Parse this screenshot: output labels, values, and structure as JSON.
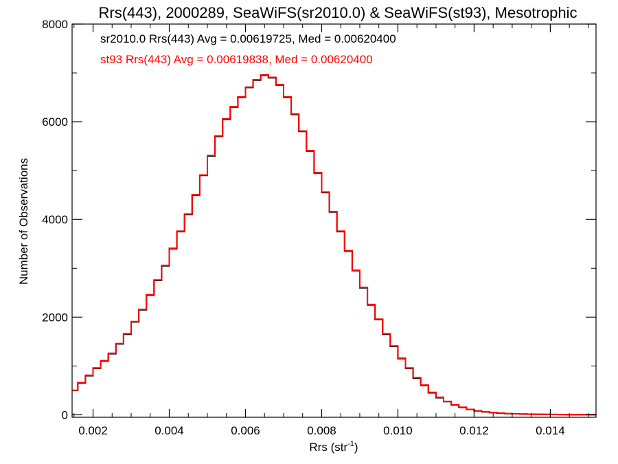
{
  "colors": {
    "series_1": "#000000",
    "series_2": "#ff0000",
    "axis": "#000000",
    "background": "#ffffff"
  },
  "chart_data": {
    "type": "line",
    "title": "Rrs(443), 2000289, SeaWiFS(sr2010.0) & SeaWiFS(st93), Mesotrophic",
    "xlabel": "Rrs (str",
    "xlabel_sup": "-1",
    "xlabel_close": ")",
    "ylabel": "Number of Observations",
    "xlim": [
      0.00145,
      0.0152
    ],
    "ylim": [
      -50,
      8000
    ],
    "x_ticks": [
      {
        "value": 0.002,
        "label": "0.002"
      },
      {
        "value": 0.004,
        "label": "0.004"
      },
      {
        "value": 0.006,
        "label": "0.006"
      },
      {
        "value": 0.008,
        "label": "0.008"
      },
      {
        "value": 0.01,
        "label": "0.010"
      },
      {
        "value": 0.012,
        "label": "0.012"
      },
      {
        "value": 0.014,
        "label": "0.014"
      }
    ],
    "y_ticks": [
      {
        "value": 0,
        "label": "0"
      },
      {
        "value": 2000,
        "label": "2000"
      },
      {
        "value": 4000,
        "label": "4000"
      },
      {
        "value": 6000,
        "label": "6000"
      },
      {
        "value": 8000,
        "label": "8000"
      }
    ],
    "grid": false,
    "legend_position": "top-left",
    "x": [
      0.0015,
      0.0017,
      0.0019,
      0.0021,
      0.0023,
      0.0025,
      0.0027,
      0.0029,
      0.0031,
      0.0033,
      0.0035,
      0.0037,
      0.0039,
      0.0041,
      0.0043,
      0.0045,
      0.0047,
      0.0049,
      0.0051,
      0.0053,
      0.0055,
      0.0057,
      0.0059,
      0.0061,
      0.0063,
      0.0065,
      0.0067,
      0.0069,
      0.0071,
      0.0073,
      0.0075,
      0.0077,
      0.0079,
      0.0081,
      0.0083,
      0.0085,
      0.0087,
      0.0089,
      0.0091,
      0.0093,
      0.0095,
      0.0097,
      0.0099,
      0.0101,
      0.0103,
      0.0105,
      0.0107,
      0.0109,
      0.0111,
      0.0113,
      0.0115,
      0.0117,
      0.0119,
      0.0121,
      0.0123,
      0.0125,
      0.0127,
      0.0129,
      0.0131,
      0.0133,
      0.0135,
      0.0137,
      0.0139,
      0.0141,
      0.0143,
      0.0145,
      0.0147,
      0.0149,
      0.0151
    ],
    "series": [
      {
        "name": "sr2010.0",
        "values": [
          500,
          650,
          800,
          950,
          1100,
          1250,
          1450,
          1650,
          1900,
          2150,
          2450,
          2750,
          3050,
          3400,
          3750,
          4100,
          4500,
          4900,
          5300,
          5700,
          6050,
          6300,
          6500,
          6700,
          6850,
          6950,
          6900,
          6750,
          6500,
          6150,
          5800,
          5400,
          4950,
          4550,
          4150,
          3750,
          3350,
          2950,
          2600,
          2250,
          1950,
          1650,
          1400,
          1150,
          950,
          750,
          600,
          450,
          350,
          270,
          200,
          150,
          110,
          80,
          60,
          45,
          35,
          25,
          20,
          15,
          12,
          10,
          8,
          6,
          5,
          4,
          3,
          2,
          2
        ]
      },
      {
        "name": "st93",
        "values": [
          500,
          660,
          810,
          960,
          1110,
          1260,
          1460,
          1660,
          1910,
          2160,
          2460,
          2760,
          3060,
          3410,
          3760,
          4110,
          4510,
          4910,
          5310,
          5710,
          6060,
          6310,
          6510,
          6710,
          6860,
          6960,
          6910,
          6760,
          6510,
          6160,
          5810,
          5410,
          4960,
          4560,
          4160,
          3760,
          3360,
          2960,
          2610,
          2260,
          1960,
          1660,
          1410,
          1160,
          960,
          760,
          610,
          460,
          360,
          275,
          205,
          155,
          112,
          82,
          62,
          46,
          36,
          26,
          21,
          16,
          13,
          11,
          9,
          7,
          6,
          5,
          4,
          3,
          3
        ]
      }
    ],
    "annotations": [
      {
        "text": "sr2010.0 Rrs(443) Avg = 0.00619725, Med = 0.00620400",
        "color": "#000000"
      },
      {
        "text": "st93 Rrs(443) Avg = 0.00619838, Med = 0.00620400",
        "color": "#ff0000"
      }
    ]
  }
}
